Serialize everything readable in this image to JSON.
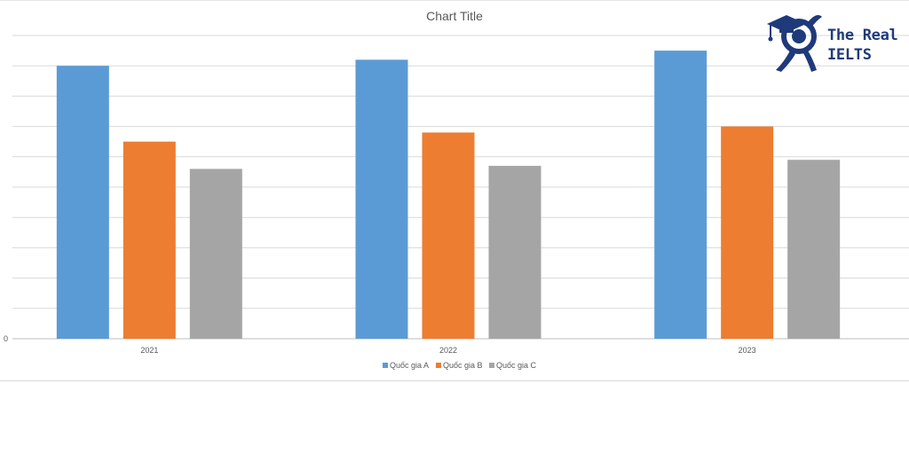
{
  "chart_data": {
    "type": "bar",
    "title": "Chart Title",
    "xlabel": "",
    "ylabel": "",
    "categories": [
      "2021",
      "2022",
      "2023"
    ],
    "series": [
      {
        "name": "Quốc gia A",
        "values": [
          90,
          92,
          95
        ],
        "color": "#5b9bd5"
      },
      {
        "name": "Quốc gia B",
        "values": [
          65,
          68,
          70
        ],
        "color": "#ed7d31"
      },
      {
        "name": "Quốc gia C",
        "values": [
          56,
          57,
          59
        ],
        "color": "#a5a5a5"
      }
    ],
    "ylim": [
      0,
      100
    ],
    "ytick_step": 10,
    "ytick_labels": [
      "0",
      "",
      "",
      "",
      "",
      "",
      "",
      "",
      "",
      "",
      ""
    ],
    "grid": true,
    "legend_position": "bottom"
  },
  "logo": {
    "line1": "The Real",
    "line2": "IELTS",
    "icon": "graduate-mascot-icon",
    "color": "#1f3a7a"
  }
}
